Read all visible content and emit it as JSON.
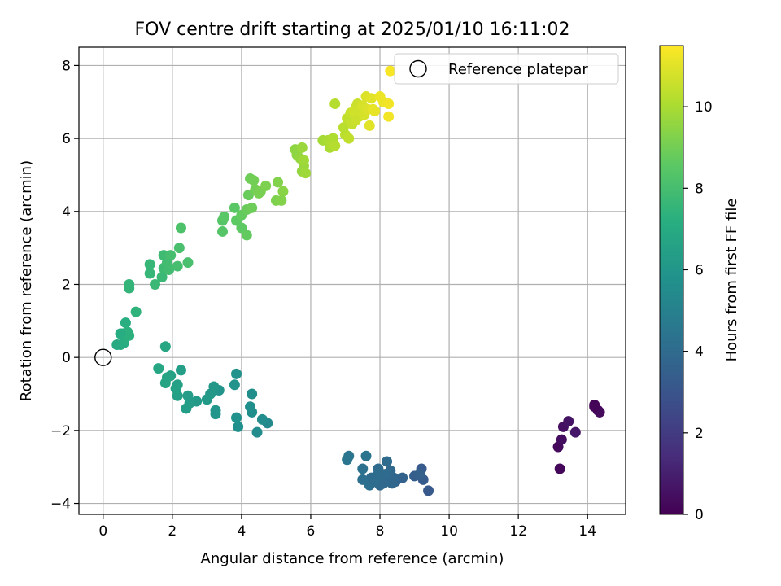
{
  "chart_data": {
    "type": "scatter",
    "title": "FOV centre drift starting at 2025/01/10 16:11:02",
    "xlabel": "Angular distance from reference (arcmin)",
    "ylabel": "Rotation from reference (arcmin)",
    "xlim": [
      -0.7,
      15.1
    ],
    "ylim": [
      -4.3,
      8.5
    ],
    "xticks": [
      0,
      2,
      4,
      6,
      8,
      10,
      12,
      14
    ],
    "yticks": [
      -4,
      -2,
      0,
      2,
      4,
      6,
      8
    ],
    "xtick_labels": [
      "0",
      "2",
      "4",
      "6",
      "8",
      "10",
      "12",
      "14"
    ],
    "ytick_labels": [
      "−4",
      "−2",
      "0",
      "2",
      "4",
      "6",
      "8"
    ],
    "grid": true,
    "legend": {
      "location": "top-right",
      "entries": [
        "Reference platepar"
      ]
    },
    "colorbar": {
      "label": "Hours from first FF file",
      "colormap": "viridis",
      "range": [
        0,
        11.5
      ],
      "ticks": [
        0,
        2,
        4,
        6,
        8,
        10
      ],
      "tick_labels": [
        "0",
        "2",
        "4",
        "6",
        "8",
        "10"
      ]
    },
    "reference_point": {
      "x": 0,
      "y": 0
    },
    "points": [
      {
        "x": 13.2,
        "y": -3.05,
        "h": 0.2
      },
      {
        "x": 13.15,
        "y": -2.45,
        "h": 0.3
      },
      {
        "x": 13.25,
        "y": -2.25,
        "h": 0.4
      },
      {
        "x": 13.3,
        "y": -1.9,
        "h": 0.5
      },
      {
        "x": 13.45,
        "y": -1.75,
        "h": 0.6
      },
      {
        "x": 13.65,
        "y": -2.05,
        "h": 0.7
      },
      {
        "x": 14.2,
        "y": -1.3,
        "h": 0.1
      },
      {
        "x": 14.3,
        "y": -1.45,
        "h": 0.2
      },
      {
        "x": 14.35,
        "y": -1.5,
        "h": 0.3
      },
      {
        "x": 14.2,
        "y": -1.35,
        "h": 0.1
      },
      {
        "x": 9.4,
        "y": -3.65,
        "h": 3.2
      },
      {
        "x": 9.2,
        "y": -3.05,
        "h": 3.3
      },
      {
        "x": 9.25,
        "y": -3.35,
        "h": 3.3
      },
      {
        "x": 9.0,
        "y": -3.25,
        "h": 3.4
      },
      {
        "x": 9.15,
        "y": -3.2,
        "h": 3.5
      },
      {
        "x": 8.65,
        "y": -3.3,
        "h": 3.6
      },
      {
        "x": 8.45,
        "y": -3.4,
        "h": 3.7
      },
      {
        "x": 8.35,
        "y": -3.45,
        "h": 3.8
      },
      {
        "x": 8.3,
        "y": -3.1,
        "h": 3.9
      },
      {
        "x": 8.2,
        "y": -2.85,
        "h": 4.0
      },
      {
        "x": 8.25,
        "y": -3.35,
        "h": 3.8
      },
      {
        "x": 8.0,
        "y": -3.5,
        "h": 3.9
      },
      {
        "x": 7.95,
        "y": -3.05,
        "h": 4.0
      },
      {
        "x": 7.9,
        "y": -3.25,
        "h": 4.1
      },
      {
        "x": 7.7,
        "y": -3.5,
        "h": 4.2
      },
      {
        "x": 7.75,
        "y": -3.3,
        "h": 4.0
      },
      {
        "x": 8.05,
        "y": -3.3,
        "h": 4.1
      },
      {
        "x": 8.1,
        "y": -3.45,
        "h": 3.9
      },
      {
        "x": 7.5,
        "y": -3.05,
        "h": 4.3
      },
      {
        "x": 7.5,
        "y": -3.35,
        "h": 4.2
      },
      {
        "x": 7.6,
        "y": -2.7,
        "h": 4.4
      },
      {
        "x": 7.1,
        "y": -2.7,
        "h": 4.5
      },
      {
        "x": 7.05,
        "y": -2.8,
        "h": 4.5
      },
      {
        "x": 7.85,
        "y": -3.4,
        "h": 4.1
      },
      {
        "x": 8.4,
        "y": -3.3,
        "h": 3.8
      },
      {
        "x": 8.15,
        "y": -3.2,
        "h": 4.0
      },
      {
        "x": 4.75,
        "y": -1.8,
        "h": 5.4
      },
      {
        "x": 4.6,
        "y": -1.7,
        "h": 5.5
      },
      {
        "x": 4.45,
        "y": -2.05,
        "h": 5.5
      },
      {
        "x": 4.3,
        "y": -1.5,
        "h": 5.6
      },
      {
        "x": 4.3,
        "y": -1.0,
        "h": 5.6
      },
      {
        "x": 4.25,
        "y": -1.35,
        "h": 5.7
      },
      {
        "x": 3.9,
        "y": -1.9,
        "h": 5.7
      },
      {
        "x": 3.85,
        "y": -1.65,
        "h": 5.8
      },
      {
        "x": 3.85,
        "y": -0.45,
        "h": 5.8
      },
      {
        "x": 3.8,
        "y": -0.75,
        "h": 5.9
      },
      {
        "x": 3.35,
        "y": -0.9,
        "h": 5.9
      },
      {
        "x": 3.25,
        "y": -1.45,
        "h": 6.0
      },
      {
        "x": 3.25,
        "y": -1.55,
        "h": 6.0
      },
      {
        "x": 3.2,
        "y": -0.8,
        "h": 6.1
      },
      {
        "x": 3.1,
        "y": -1.0,
        "h": 6.1
      },
      {
        "x": 3.0,
        "y": -1.15,
        "h": 6.2
      },
      {
        "x": 2.7,
        "y": -1.2,
        "h": 6.2
      },
      {
        "x": 2.5,
        "y": -1.25,
        "h": 6.3
      },
      {
        "x": 2.45,
        "y": -1.05,
        "h": 6.3
      },
      {
        "x": 2.4,
        "y": -1.4,
        "h": 6.4
      },
      {
        "x": 2.25,
        "y": -0.35,
        "h": 6.4
      },
      {
        "x": 2.15,
        "y": -0.75,
        "h": 6.5
      },
      {
        "x": 2.15,
        "y": -1.05,
        "h": 6.5
      },
      {
        "x": 2.1,
        "y": -0.85,
        "h": 6.6
      },
      {
        "x": 1.95,
        "y": -0.5,
        "h": 6.6
      },
      {
        "x": 1.85,
        "y": -0.55,
        "h": 6.7
      },
      {
        "x": 1.8,
        "y": -0.7,
        "h": 6.7
      },
      {
        "x": 1.6,
        "y": -0.3,
        "h": 6.8
      },
      {
        "x": 1.8,
        "y": 0.3,
        "h": 6.8
      },
      {
        "x": 0.4,
        "y": 0.35,
        "h": 7.0
      },
      {
        "x": 0.5,
        "y": 0.35,
        "h": 7.0
      },
      {
        "x": 0.55,
        "y": 0.65,
        "h": 7.1
      },
      {
        "x": 0.6,
        "y": 0.4,
        "h": 7.1
      },
      {
        "x": 0.65,
        "y": 0.55,
        "h": 7.2
      },
      {
        "x": 0.65,
        "y": 0.95,
        "h": 7.2
      },
      {
        "x": 0.7,
        "y": 0.7,
        "h": 7.3
      },
      {
        "x": 0.75,
        "y": 0.6,
        "h": 7.3
      },
      {
        "x": 0.5,
        "y": 0.65,
        "h": 7.1
      },
      {
        "x": 0.95,
        "y": 1.25,
        "h": 7.4
      },
      {
        "x": 0.75,
        "y": 1.9,
        "h": 7.5
      },
      {
        "x": 0.75,
        "y": 2.0,
        "h": 7.5
      },
      {
        "x": 1.35,
        "y": 2.3,
        "h": 7.6
      },
      {
        "x": 1.35,
        "y": 2.55,
        "h": 7.6
      },
      {
        "x": 1.5,
        "y": 2.0,
        "h": 7.7
      },
      {
        "x": 1.7,
        "y": 2.2,
        "h": 7.7
      },
      {
        "x": 1.75,
        "y": 2.45,
        "h": 7.8
      },
      {
        "x": 1.75,
        "y": 2.8,
        "h": 7.8
      },
      {
        "x": 1.85,
        "y": 2.6,
        "h": 7.9
      },
      {
        "x": 1.9,
        "y": 2.4,
        "h": 7.9
      },
      {
        "x": 1.95,
        "y": 2.8,
        "h": 8.0
      },
      {
        "x": 2.15,
        "y": 2.5,
        "h": 8.0
      },
      {
        "x": 2.2,
        "y": 3.0,
        "h": 8.1
      },
      {
        "x": 2.45,
        "y": 2.6,
        "h": 8.1
      },
      {
        "x": 2.25,
        "y": 3.55,
        "h": 8.2
      },
      {
        "x": 3.45,
        "y": 3.45,
        "h": 8.4
      },
      {
        "x": 3.45,
        "y": 3.75,
        "h": 8.4
      },
      {
        "x": 3.5,
        "y": 3.85,
        "h": 8.5
      },
      {
        "x": 3.8,
        "y": 4.1,
        "h": 8.5
      },
      {
        "x": 3.85,
        "y": 3.75,
        "h": 8.6
      },
      {
        "x": 4.0,
        "y": 3.55,
        "h": 8.6
      },
      {
        "x": 4.0,
        "y": 3.9,
        "h": 8.7
      },
      {
        "x": 4.15,
        "y": 3.35,
        "h": 8.7
      },
      {
        "x": 4.15,
        "y": 4.05,
        "h": 8.8
      },
      {
        "x": 4.2,
        "y": 4.45,
        "h": 8.8
      },
      {
        "x": 4.25,
        "y": 4.9,
        "h": 8.9
      },
      {
        "x": 4.3,
        "y": 4.1,
        "h": 8.9
      },
      {
        "x": 4.35,
        "y": 4.85,
        "h": 9.0
      },
      {
        "x": 4.4,
        "y": 4.6,
        "h": 9.0
      },
      {
        "x": 4.5,
        "y": 4.5,
        "h": 9.1
      },
      {
        "x": 4.55,
        "y": 4.55,
        "h": 9.1
      },
      {
        "x": 4.7,
        "y": 4.7,
        "h": 9.2
      },
      {
        "x": 5.0,
        "y": 4.3,
        "h": 9.2
      },
      {
        "x": 5.05,
        "y": 4.8,
        "h": 9.3
      },
      {
        "x": 5.15,
        "y": 4.3,
        "h": 9.3
      },
      {
        "x": 5.2,
        "y": 4.55,
        "h": 9.4
      },
      {
        "x": 5.55,
        "y": 5.7,
        "h": 9.5
      },
      {
        "x": 5.6,
        "y": 5.55,
        "h": 9.5
      },
      {
        "x": 5.7,
        "y": 5.45,
        "h": 9.6
      },
      {
        "x": 5.75,
        "y": 5.1,
        "h": 9.6
      },
      {
        "x": 5.75,
        "y": 5.75,
        "h": 9.7
      },
      {
        "x": 5.8,
        "y": 5.25,
        "h": 9.7
      },
      {
        "x": 5.8,
        "y": 5.4,
        "h": 9.8
      },
      {
        "x": 5.85,
        "y": 5.05,
        "h": 9.8
      },
      {
        "x": 6.35,
        "y": 5.95,
        "h": 9.9
      },
      {
        "x": 6.5,
        "y": 5.95,
        "h": 10.0
      },
      {
        "x": 6.55,
        "y": 5.75,
        "h": 10.0
      },
      {
        "x": 6.6,
        "y": 5.85,
        "h": 10.1
      },
      {
        "x": 6.65,
        "y": 6.0,
        "h": 10.1
      },
      {
        "x": 6.7,
        "y": 5.8,
        "h": 10.2
      },
      {
        "x": 6.7,
        "y": 6.95,
        "h": 10.2
      },
      {
        "x": 6.95,
        "y": 6.3,
        "h": 10.3
      },
      {
        "x": 7.0,
        "y": 6.1,
        "h": 10.3
      },
      {
        "x": 7.05,
        "y": 6.55,
        "h": 10.4
      },
      {
        "x": 7.1,
        "y": 6.0,
        "h": 10.4
      },
      {
        "x": 7.15,
        "y": 6.7,
        "h": 10.5
      },
      {
        "x": 7.2,
        "y": 6.4,
        "h": 10.5
      },
      {
        "x": 7.3,
        "y": 6.85,
        "h": 10.6
      },
      {
        "x": 7.35,
        "y": 6.95,
        "h": 10.6
      },
      {
        "x": 7.4,
        "y": 6.6,
        "h": 10.7
      },
      {
        "x": 7.45,
        "y": 6.75,
        "h": 10.7
      },
      {
        "x": 7.5,
        "y": 6.9,
        "h": 10.8
      },
      {
        "x": 7.55,
        "y": 6.65,
        "h": 10.8
      },
      {
        "x": 7.6,
        "y": 7.15,
        "h": 10.9
      },
      {
        "x": 7.65,
        "y": 6.8,
        "h": 10.9
      },
      {
        "x": 7.7,
        "y": 6.35,
        "h": 11.0
      },
      {
        "x": 7.75,
        "y": 7.1,
        "h": 11.0
      },
      {
        "x": 7.8,
        "y": 6.8,
        "h": 11.1
      },
      {
        "x": 7.85,
        "y": 6.75,
        "h": 11.1
      },
      {
        "x": 8.0,
        "y": 7.15,
        "h": 11.2
      },
      {
        "x": 8.1,
        "y": 7.0,
        "h": 11.2
      },
      {
        "x": 8.25,
        "y": 6.95,
        "h": 11.3
      },
      {
        "x": 8.25,
        "y": 6.6,
        "h": 11.3
      },
      {
        "x": 8.3,
        "y": 7.85,
        "h": 11.4
      },
      {
        "x": 7.3,
        "y": 6.5,
        "h": 10.6
      },
      {
        "x": 7.25,
        "y": 6.75,
        "h": 10.7
      }
    ]
  }
}
